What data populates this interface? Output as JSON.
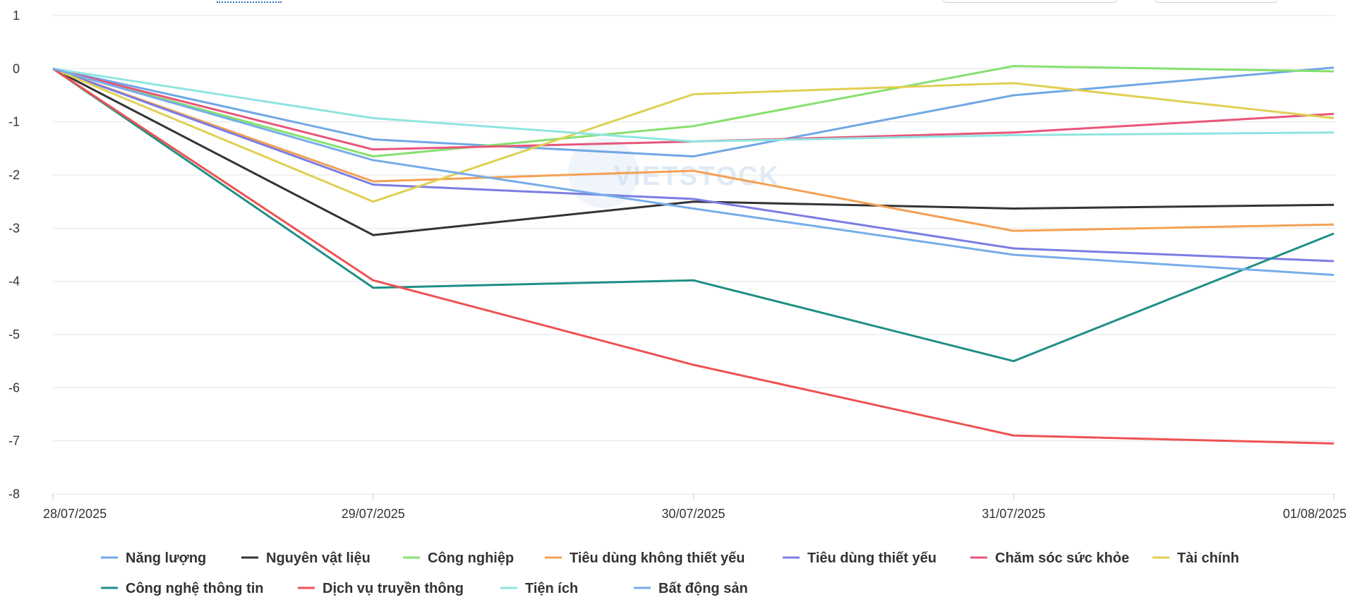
{
  "chart_data": {
    "type": "line",
    "categories": [
      "28/07/2025",
      "29/07/2025",
      "30/07/2025",
      "31/07/2025",
      "01/08/2025"
    ],
    "ylim": [
      -8,
      1
    ],
    "yticks": [
      "1",
      "0",
      "-1",
      "-2",
      "-3",
      "-4",
      "-5",
      "-6",
      "-7",
      "-8"
    ],
    "grid": "horizontal",
    "legend_position": "bottom",
    "watermark": "VIETSTOCK",
    "series": [
      {
        "name": "Năng lượng",
        "color": "#6fa8e6",
        "values": [
          0,
          -1.33,
          -1.65,
          -0.5,
          0.02
        ]
      },
      {
        "name": "Nguyên vật liệu",
        "color": "#333333",
        "values": [
          0,
          -3.13,
          -2.5,
          -2.63,
          -2.56
        ]
      },
      {
        "name": "Công nghiệp",
        "color": "#86e06e",
        "values": [
          0,
          -1.65,
          -1.08,
          0.05,
          -0.05
        ]
      },
      {
        "name": "Tiêu dùng không thiết yếu",
        "color": "#f4a053",
        "values": [
          0,
          -2.12,
          -1.92,
          -3.05,
          -2.93
        ]
      },
      {
        "name": "Tiêu dùng thiết yếu",
        "color": "#7b7de3",
        "values": [
          0,
          -2.18,
          -2.45,
          -3.38,
          -3.62
        ]
      },
      {
        "name": "Chăm sóc sức khỏe",
        "color": "#e8557a",
        "values": [
          0,
          -1.52,
          -1.37,
          -1.2,
          -0.85
        ]
      },
      {
        "name": "Tài chính",
        "color": "#e0cf52",
        "values": [
          0,
          -2.5,
          -0.48,
          -0.27,
          -0.93
        ]
      },
      {
        "name": "Công nghệ thông tin",
        "color": "#208f86",
        "values": [
          0,
          -4.12,
          -3.98,
          -5.5,
          -3.1
        ]
      },
      {
        "name": "Dịch vụ truyền thông",
        "color": "#ee5252",
        "values": [
          0,
          -3.98,
          -5.57,
          -6.9,
          -7.05
        ]
      },
      {
        "name": "Tiện ích",
        "color": "#8fe5e0",
        "values": [
          0,
          -0.93,
          -1.37,
          -1.25,
          -1.2
        ]
      },
      {
        "name": "Bất động sản",
        "color": "#76ade9",
        "values": [
          0,
          -1.72,
          -2.63,
          -3.5,
          -3.88
        ]
      }
    ]
  }
}
